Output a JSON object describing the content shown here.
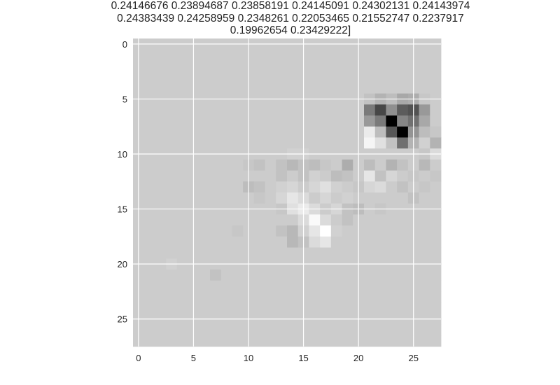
{
  "chart_data": {
    "type": "heatmap",
    "title_lines": [
      "0.24146676  0.23894687  0.23858191  0.24145091  0.24302131  0.24143974",
      "0.24383439  0.24258959  0.2348261   0.22053465  0.21552747  0.2237917",
      "0.19962654  0.23429222]"
    ],
    "xlabel": "",
    "ylabel": "",
    "colormap": "gray",
    "grid": true,
    "grid_color": "#ffffff",
    "background_color": "#cccccc",
    "xlim": [
      -0.5,
      27.5
    ],
    "ylim": [
      27.5,
      -0.5
    ],
    "x_ticks": [
      0,
      5,
      10,
      15,
      20,
      25
    ],
    "y_ticks": [
      0,
      5,
      10,
      15,
      20,
      25
    ],
    "x_tick_labels": [
      "0",
      "5",
      "10",
      "15",
      "20",
      "25"
    ],
    "y_tick_labels": [
      "0",
      "5",
      "10",
      "15",
      "20",
      "25"
    ],
    "shape": [
      28,
      28
    ],
    "values": [
      [
        0.8,
        0.8,
        0.8,
        0.8,
        0.8,
        0.8,
        0.8,
        0.8,
        0.8,
        0.8,
        0.8,
        0.8,
        0.8,
        0.8,
        0.8,
        0.8,
        0.8,
        0.8,
        0.8,
        0.8,
        0.8,
        0.8,
        0.8,
        0.8,
        0.8,
        0.8,
        0.8,
        0.8
      ],
      [
        0.8,
        0.8,
        0.8,
        0.8,
        0.8,
        0.8,
        0.8,
        0.8,
        0.8,
        0.8,
        0.8,
        0.8,
        0.8,
        0.8,
        0.8,
        0.8,
        0.8,
        0.8,
        0.8,
        0.8,
        0.8,
        0.8,
        0.8,
        0.8,
        0.8,
        0.8,
        0.8,
        0.8
      ],
      [
        0.8,
        0.8,
        0.8,
        0.8,
        0.8,
        0.8,
        0.8,
        0.8,
        0.8,
        0.8,
        0.8,
        0.8,
        0.8,
        0.8,
        0.8,
        0.8,
        0.8,
        0.8,
        0.8,
        0.8,
        0.8,
        0.8,
        0.8,
        0.8,
        0.8,
        0.8,
        0.8,
        0.8
      ],
      [
        0.8,
        0.8,
        0.8,
        0.8,
        0.8,
        0.8,
        0.8,
        0.8,
        0.8,
        0.8,
        0.8,
        0.8,
        0.8,
        0.8,
        0.8,
        0.8,
        0.8,
        0.8,
        0.8,
        0.8,
        0.8,
        0.8,
        0.8,
        0.8,
        0.8,
        0.8,
        0.8,
        0.8
      ],
      [
        0.8,
        0.8,
        0.8,
        0.8,
        0.8,
        0.8,
        0.8,
        0.8,
        0.8,
        0.8,
        0.8,
        0.8,
        0.8,
        0.8,
        0.8,
        0.8,
        0.8,
        0.8,
        0.8,
        0.8,
        0.8,
        0.8,
        0.8,
        0.8,
        0.8,
        0.8,
        0.8,
        0.8
      ],
      [
        0.8,
        0.8,
        0.8,
        0.8,
        0.8,
        0.8,
        0.8,
        0.8,
        0.8,
        0.8,
        0.8,
        0.8,
        0.8,
        0.8,
        0.8,
        0.8,
        0.8,
        0.8,
        0.8,
        0.8,
        0.8,
        0.76,
        0.7,
        0.74,
        0.66,
        0.68,
        0.78,
        0.8
      ],
      [
        0.8,
        0.8,
        0.8,
        0.8,
        0.8,
        0.8,
        0.8,
        0.8,
        0.8,
        0.8,
        0.8,
        0.8,
        0.8,
        0.8,
        0.8,
        0.8,
        0.8,
        0.8,
        0.8,
        0.8,
        0.8,
        0.48,
        0.28,
        0.56,
        0.36,
        0.32,
        0.6,
        0.8
      ],
      [
        0.8,
        0.8,
        0.8,
        0.8,
        0.8,
        0.8,
        0.8,
        0.8,
        0.8,
        0.8,
        0.8,
        0.8,
        0.8,
        0.8,
        0.8,
        0.8,
        0.8,
        0.8,
        0.8,
        0.8,
        0.8,
        0.6,
        0.48,
        0.0,
        0.52,
        0.44,
        0.66,
        0.8
      ],
      [
        0.8,
        0.8,
        0.8,
        0.8,
        0.8,
        0.8,
        0.8,
        0.8,
        0.8,
        0.8,
        0.8,
        0.8,
        0.8,
        0.8,
        0.8,
        0.8,
        0.8,
        0.8,
        0.8,
        0.8,
        0.8,
        0.92,
        0.74,
        0.34,
        0.0,
        0.58,
        0.74,
        0.78
      ],
      [
        0.8,
        0.8,
        0.8,
        0.8,
        0.8,
        0.8,
        0.8,
        0.8,
        0.8,
        0.8,
        0.8,
        0.8,
        0.8,
        0.8,
        0.8,
        0.8,
        0.8,
        0.8,
        0.8,
        0.8,
        0.8,
        0.96,
        0.88,
        0.76,
        0.44,
        0.7,
        0.82,
        0.7
      ],
      [
        0.8,
        0.8,
        0.8,
        0.8,
        0.8,
        0.8,
        0.8,
        0.8,
        0.8,
        0.8,
        0.8,
        0.8,
        0.8,
        0.8,
        0.82,
        0.82,
        0.8,
        0.8,
        0.8,
        0.8,
        0.8,
        0.8,
        0.8,
        0.8,
        0.8,
        0.8,
        0.78,
        0.86
      ],
      [
        0.8,
        0.8,
        0.8,
        0.8,
        0.8,
        0.8,
        0.8,
        0.8,
        0.8,
        0.8,
        0.78,
        0.76,
        0.8,
        0.76,
        0.72,
        0.76,
        0.74,
        0.78,
        0.8,
        0.68,
        0.8,
        0.74,
        0.8,
        0.7,
        0.76,
        0.8,
        0.72,
        0.8
      ],
      [
        0.8,
        0.8,
        0.8,
        0.8,
        0.8,
        0.8,
        0.8,
        0.8,
        0.8,
        0.8,
        0.8,
        0.8,
        0.8,
        0.76,
        0.8,
        0.76,
        0.82,
        0.8,
        0.74,
        0.76,
        0.8,
        0.9,
        0.76,
        0.84,
        0.8,
        0.78,
        0.8,
        0.78
      ],
      [
        0.8,
        0.8,
        0.8,
        0.8,
        0.8,
        0.8,
        0.8,
        0.8,
        0.8,
        0.8,
        0.74,
        0.76,
        0.8,
        0.82,
        0.84,
        0.8,
        0.84,
        0.88,
        0.82,
        0.8,
        0.78,
        0.84,
        0.86,
        0.8,
        0.76,
        0.8,
        0.78,
        0.8
      ],
      [
        0.8,
        0.8,
        0.8,
        0.8,
        0.8,
        0.8,
        0.8,
        0.8,
        0.8,
        0.8,
        0.8,
        0.78,
        0.8,
        0.84,
        0.9,
        0.86,
        0.8,
        0.84,
        0.8,
        0.82,
        0.8,
        0.8,
        0.8,
        0.8,
        0.8,
        0.76,
        0.8,
        0.8
      ],
      [
        0.8,
        0.8,
        0.8,
        0.8,
        0.8,
        0.8,
        0.8,
        0.8,
        0.8,
        0.8,
        0.8,
        0.8,
        0.8,
        0.78,
        0.88,
        0.92,
        0.86,
        0.8,
        0.84,
        0.76,
        0.74,
        0.8,
        0.78,
        0.8,
        0.8,
        0.8,
        0.8,
        0.8
      ],
      [
        0.8,
        0.8,
        0.8,
        0.8,
        0.8,
        0.8,
        0.8,
        0.8,
        0.8,
        0.8,
        0.8,
        0.8,
        0.8,
        0.8,
        0.8,
        0.86,
        0.98,
        0.86,
        0.8,
        0.76,
        0.8,
        0.8,
        0.8,
        0.8,
        0.8,
        0.8,
        0.8,
        0.8
      ],
      [
        0.8,
        0.8,
        0.8,
        0.8,
        0.8,
        0.8,
        0.8,
        0.8,
        0.8,
        0.78,
        0.8,
        0.8,
        0.8,
        0.76,
        0.72,
        0.82,
        0.9,
        1.0,
        0.82,
        0.8,
        0.8,
        0.8,
        0.8,
        0.8,
        0.8,
        0.8,
        0.8,
        0.8
      ],
      [
        0.8,
        0.8,
        0.8,
        0.8,
        0.8,
        0.8,
        0.8,
        0.8,
        0.8,
        0.8,
        0.8,
        0.8,
        0.8,
        0.8,
        0.72,
        0.76,
        0.86,
        0.9,
        0.8,
        0.8,
        0.8,
        0.8,
        0.8,
        0.8,
        0.8,
        0.8,
        0.8,
        0.8
      ],
      [
        0.8,
        0.8,
        0.8,
        0.8,
        0.8,
        0.8,
        0.8,
        0.8,
        0.8,
        0.8,
        0.8,
        0.8,
        0.8,
        0.8,
        0.8,
        0.8,
        0.8,
        0.8,
        0.8,
        0.8,
        0.8,
        0.8,
        0.8,
        0.8,
        0.8,
        0.8,
        0.8,
        0.8
      ],
      [
        0.8,
        0.8,
        0.8,
        0.82,
        0.8,
        0.8,
        0.8,
        0.8,
        0.8,
        0.8,
        0.8,
        0.8,
        0.8,
        0.8,
        0.8,
        0.8,
        0.8,
        0.8,
        0.8,
        0.8,
        0.8,
        0.8,
        0.8,
        0.8,
        0.8,
        0.8,
        0.8,
        0.8
      ],
      [
        0.8,
        0.8,
        0.8,
        0.8,
        0.8,
        0.8,
        0.8,
        0.76,
        0.8,
        0.8,
        0.8,
        0.8,
        0.8,
        0.8,
        0.8,
        0.8,
        0.8,
        0.8,
        0.8,
        0.8,
        0.8,
        0.8,
        0.8,
        0.8,
        0.8,
        0.8,
        0.8,
        0.8
      ],
      [
        0.8,
        0.8,
        0.8,
        0.8,
        0.8,
        0.8,
        0.8,
        0.8,
        0.8,
        0.8,
        0.8,
        0.8,
        0.8,
        0.8,
        0.8,
        0.8,
        0.8,
        0.8,
        0.8,
        0.8,
        0.8,
        0.8,
        0.8,
        0.8,
        0.8,
        0.8,
        0.8,
        0.8
      ],
      [
        0.8,
        0.8,
        0.8,
        0.8,
        0.8,
        0.8,
        0.8,
        0.8,
        0.8,
        0.8,
        0.8,
        0.8,
        0.8,
        0.8,
        0.8,
        0.8,
        0.8,
        0.8,
        0.8,
        0.8,
        0.8,
        0.8,
        0.8,
        0.8,
        0.8,
        0.8,
        0.8,
        0.8
      ],
      [
        0.8,
        0.8,
        0.8,
        0.8,
        0.8,
        0.8,
        0.8,
        0.8,
        0.8,
        0.8,
        0.8,
        0.8,
        0.8,
        0.8,
        0.8,
        0.8,
        0.8,
        0.8,
        0.8,
        0.8,
        0.8,
        0.8,
        0.8,
        0.8,
        0.8,
        0.8,
        0.8,
        0.8
      ],
      [
        0.8,
        0.8,
        0.8,
        0.8,
        0.8,
        0.8,
        0.8,
        0.8,
        0.8,
        0.8,
        0.8,
        0.8,
        0.8,
        0.8,
        0.8,
        0.8,
        0.8,
        0.8,
        0.8,
        0.8,
        0.8,
        0.8,
        0.8,
        0.8,
        0.8,
        0.8,
        0.8,
        0.8
      ],
      [
        0.8,
        0.8,
        0.8,
        0.8,
        0.8,
        0.8,
        0.8,
        0.8,
        0.8,
        0.8,
        0.8,
        0.8,
        0.8,
        0.8,
        0.8,
        0.8,
        0.8,
        0.8,
        0.8,
        0.8,
        0.8,
        0.8,
        0.8,
        0.8,
        0.8,
        0.8,
        0.8,
        0.8
      ],
      [
        0.8,
        0.8,
        0.8,
        0.8,
        0.8,
        0.8,
        0.8,
        0.8,
        0.8,
        0.8,
        0.8,
        0.8,
        0.8,
        0.8,
        0.8,
        0.8,
        0.8,
        0.8,
        0.8,
        0.8,
        0.8,
        0.8,
        0.8,
        0.8,
        0.8,
        0.8,
        0.8,
        0.8
      ]
    ]
  }
}
